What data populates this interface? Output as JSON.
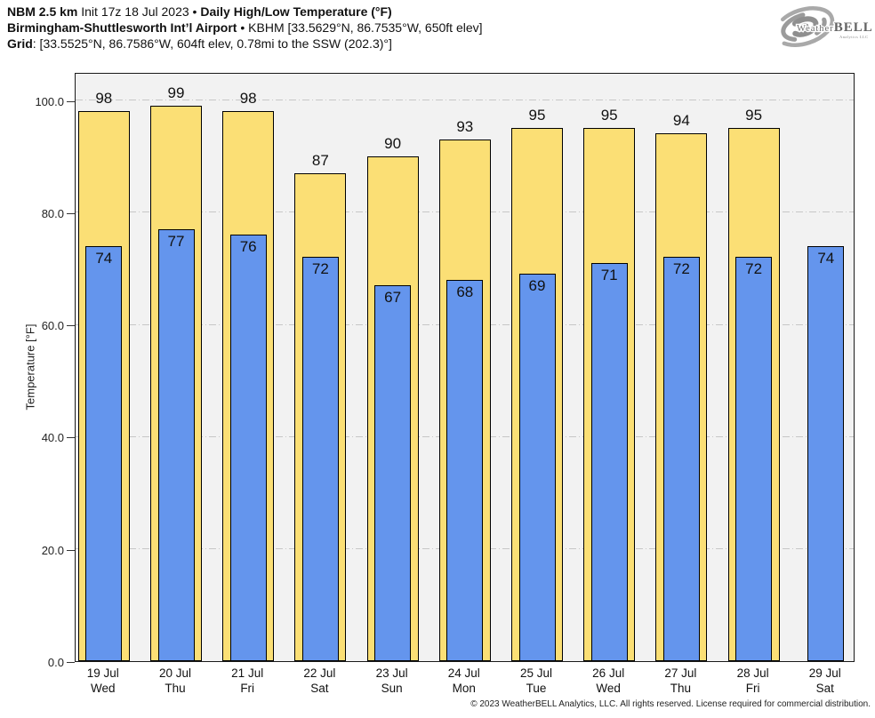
{
  "header": {
    "line1_bold1": "NBM 2.5 km",
    "line1_regular": " Init 17z 18 Jul 2023 • ",
    "line1_bold2": "Daily High/Low Temperature (°F)",
    "line2_bold": "Birmingham-Shuttlesworth Int’l Airport",
    "line2_regular": " • KBHM [33.5629°N, 86.7535°W, 650ft elev]",
    "line3_bold": "Grid",
    "line3_regular": ": [33.5525°N, 86.7586°W, 604ft elev, 0.78mi to the SSW (202.3)°]"
  },
  "logo": {
    "brand_prefix": "Weather",
    "brand_suffix": "BELL",
    "subtext": "Analytics LLC"
  },
  "chart_data": {
    "type": "bar",
    "title": "Daily High/Low Temperature (°F)",
    "ylabel": "Temperature [°F]",
    "ylim": [
      0,
      105
    ],
    "yticks": [
      0,
      20,
      40,
      60,
      80,
      100
    ],
    "ytick_labels": [
      "0.0",
      "20.0",
      "40.0",
      "60.0",
      "80.0",
      "100.0"
    ],
    "grid": "horizontal dash-dot",
    "plot_bg": "#f2f2f2",
    "gridline_color": "#c7c7c7",
    "categories": [
      {
        "date": "19 Jul",
        "dow": "Wed"
      },
      {
        "date": "20 Jul",
        "dow": "Thu"
      },
      {
        "date": "21 Jul",
        "dow": "Fri"
      },
      {
        "date": "22 Jul",
        "dow": "Sat"
      },
      {
        "date": "23 Jul",
        "dow": "Sun"
      },
      {
        "date": "24 Jul",
        "dow": "Mon"
      },
      {
        "date": "25 Jul",
        "dow": "Tue"
      },
      {
        "date": "26 Jul",
        "dow": "Wed"
      },
      {
        "date": "27 Jul",
        "dow": "Thu"
      },
      {
        "date": "28 Jul",
        "dow": "Fri"
      },
      {
        "date": "29 Jul",
        "dow": "Sat"
      }
    ],
    "series": [
      {
        "name": "High",
        "color": "#FBDF75",
        "border": "#000000",
        "values": [
          98,
          99,
          98,
          87,
          90,
          93,
          95,
          95,
          94,
          95,
          null
        ]
      },
      {
        "name": "Low",
        "color": "#6495ED",
        "border": "#000000",
        "values": [
          74,
          77,
          76,
          72,
          67,
          68,
          69,
          71,
          72,
          72,
          74
        ]
      }
    ]
  },
  "footer": {
    "copyright": "© 2023 WeatherBELL Analytics, LLC. All rights reserved. License required for commercial distribution."
  }
}
